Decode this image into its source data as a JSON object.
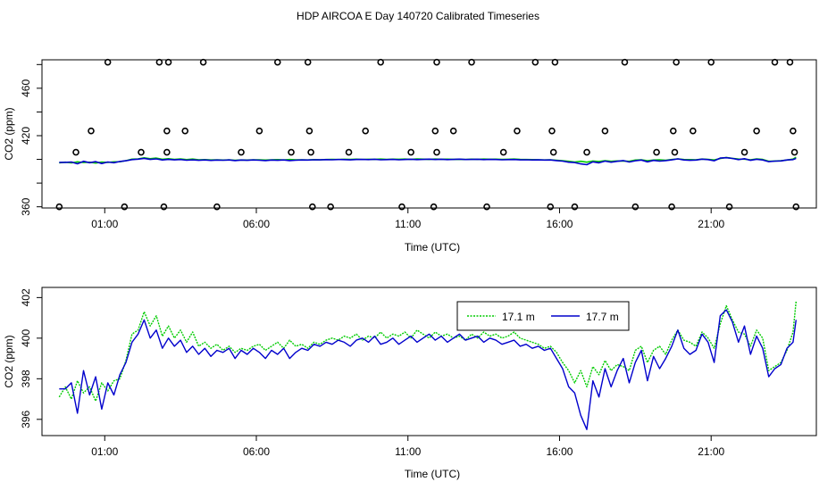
{
  "title": "HDP AIRCOA E  Day 140720  Calibrated Timeseries",
  "chart_data": [
    {
      "type": "line",
      "ylabel": "CO2 (ppm)",
      "xlabel": "Time (UTC)",
      "xticks": [
        "01:00",
        "06:00",
        "11:00",
        "16:00",
        "21:00"
      ],
      "xtick_hours": [
        1,
        6,
        11,
        16,
        21
      ],
      "xlim": [
        -1.07,
        24.47
      ],
      "yticks": [
        360,
        380,
        400,
        420,
        440,
        460,
        480
      ],
      "ytick_labels": [
        "360",
        "",
        "",
        "420",
        "",
        "460",
        ""
      ],
      "ylim": [
        359,
        484
      ],
      "markers": {
        "hours": [
          -0.5,
          0.05,
          0.55,
          1.1,
          1.65,
          2.2,
          2.95,
          2.8,
          3.05,
          3.05,
          3.1,
          3.65,
          4.25,
          4.7,
          5.5,
          6.1,
          6.7,
          7.15,
          7.7,
          7.75,
          7.8,
          7.85,
          8.45,
          9.05,
          9.6,
          10.1,
          10.8,
          11.1,
          11.85,
          11.9,
          11.95,
          11.95,
          12.5,
          13.1,
          13.6,
          14.15,
          14.6,
          15.2,
          15.7,
          15.75,
          15.8,
          15.85,
          16.5,
          16.9,
          17.5,
          18.15,
          18.5,
          19.2,
          19.7,
          19.75,
          19.8,
          19.85,
          20.4,
          21.0,
          21.6,
          22.1,
          22.5,
          23.1,
          23.6,
          23.7,
          23.75,
          23.8
        ],
        "values": [
          360,
          406,
          424,
          482,
          360,
          406,
          360,
          482,
          424,
          406,
          482,
          424,
          482,
          360,
          406,
          424,
          482,
          406,
          482,
          424,
          406,
          360,
          360,
          406,
          424,
          482,
          360,
          406,
          360,
          424,
          406,
          482,
          424,
          482,
          360,
          406,
          424,
          482,
          360,
          424,
          406,
          482,
          360,
          406,
          424,
          482,
          360,
          406,
          360,
          424,
          406,
          482,
          424,
          482,
          360,
          406,
          424,
          482,
          482,
          424,
          406,
          360
        ]
      },
      "series": [
        {
          "color": "#00CC00",
          "values": []
        },
        {
          "color": "#0000CC",
          "values": []
        }
      ]
    },
    {
      "type": "line",
      "ylabel": "CO2 (ppm)",
      "xlabel": "Time (UTC)",
      "xticks": [
        "01:00",
        "06:00",
        "11:00",
        "16:00",
        "21:00"
      ],
      "xtick_hours": [
        1,
        6,
        11,
        16,
        21
      ],
      "xlim": [
        -1.07,
        24.47
      ],
      "yticks": [
        396,
        398,
        400,
        402
      ],
      "ylim": [
        395.2,
        402.5
      ],
      "legend_position": "top-right",
      "series": [
        {
          "name": "17.1 m",
          "color": "#00CC00",
          "x": [
            -0.5,
            -0.3,
            -0.1,
            0.1,
            0.3,
            0.5,
            0.7,
            0.9,
            1.1,
            1.3,
            1.5,
            1.7,
            1.9,
            2.1,
            2.3,
            2.5,
            2.7,
            2.9,
            3.1,
            3.3,
            3.5,
            3.7,
            3.9,
            4.1,
            4.3,
            4.5,
            4.7,
            4.9,
            5.1,
            5.3,
            5.5,
            5.7,
            5.9,
            6.1,
            6.3,
            6.5,
            6.7,
            6.9,
            7.1,
            7.3,
            7.5,
            7.7,
            7.9,
            8.1,
            8.3,
            8.5,
            8.7,
            8.9,
            9.1,
            9.3,
            9.5,
            9.7,
            9.9,
            10.1,
            10.3,
            10.5,
            10.7,
            10.9,
            11.1,
            11.3,
            11.5,
            11.7,
            11.9,
            12.1,
            12.3,
            12.5,
            12.7,
            12.9,
            13.1,
            13.3,
            13.5,
            13.7,
            13.9,
            14.1,
            14.3,
            14.5,
            14.7,
            14.9,
            15.1,
            15.3,
            15.5,
            15.7,
            15.9,
            16.1,
            16.3,
            16.5,
            16.7,
            16.9,
            17.1,
            17.3,
            17.5,
            17.7,
            17.9,
            18.1,
            18.3,
            18.5,
            18.7,
            18.9,
            19.1,
            19.3,
            19.5,
            19.7,
            19.9,
            20.1,
            20.3,
            20.5,
            20.7,
            20.9,
            21.1,
            21.3,
            21.5,
            21.7,
            21.9,
            22.1,
            22.3,
            22.5,
            22.7,
            22.9,
            23.1,
            23.3,
            23.5,
            23.7,
            23.8
          ],
          "values": [
            397.1,
            397.6,
            397.0,
            397.9,
            397.3,
            397.6,
            396.9,
            397.8,
            397.4,
            397.9,
            398.0,
            398.9,
            400.2,
            400.4,
            401.3,
            400.6,
            401.1,
            400.1,
            400.6,
            400.0,
            400.4,
            399.8,
            400.3,
            399.6,
            399.8,
            399.5,
            399.7,
            399.4,
            399.6,
            399.3,
            399.5,
            399.4,
            399.6,
            399.7,
            399.4,
            399.6,
            399.8,
            399.5,
            399.9,
            399.6,
            399.7,
            399.5,
            399.8,
            399.7,
            399.9,
            400.0,
            399.9,
            400.1,
            400.0,
            400.2,
            399.9,
            400.1,
            400.0,
            400.3,
            400.0,
            400.2,
            400.1,
            400.3,
            400.0,
            400.4,
            400.2,
            400.0,
            400.3,
            400.1,
            400.2,
            400.0,
            400.1,
            399.9,
            400.2,
            400.0,
            400.3,
            400.1,
            400.2,
            400.0,
            400.1,
            400.3,
            400.0,
            399.9,
            399.8,
            399.7,
            399.5,
            399.6,
            399.3,
            398.8,
            398.4,
            397.8,
            398.4,
            397.6,
            398.6,
            398.2,
            398.9,
            398.4,
            398.7,
            398.6,
            398.4,
            399.4,
            399.6,
            398.8,
            399.4,
            399.6,
            399.2,
            399.9,
            400.4,
            399.9,
            399.8,
            399.6,
            400.3,
            400.0,
            399.5,
            400.7,
            401.6,
            400.9,
            400.3,
            400.2,
            399.6,
            400.4,
            400.0,
            398.4,
            398.6,
            398.8,
            399.4,
            400.3,
            401.8
          ]
        },
        {
          "name": "17.7 m",
          "color": "#0000CC",
          "x": [
            -0.5,
            -0.3,
            -0.1,
            0.1,
            0.3,
            0.5,
            0.7,
            0.9,
            1.1,
            1.3,
            1.5,
            1.7,
            1.9,
            2.1,
            2.3,
            2.5,
            2.7,
            2.9,
            3.1,
            3.3,
            3.5,
            3.7,
            3.9,
            4.1,
            4.3,
            4.5,
            4.7,
            4.9,
            5.1,
            5.3,
            5.5,
            5.7,
            5.9,
            6.1,
            6.3,
            6.5,
            6.7,
            6.9,
            7.1,
            7.3,
            7.5,
            7.7,
            7.9,
            8.1,
            8.3,
            8.5,
            8.7,
            8.9,
            9.1,
            9.3,
            9.5,
            9.7,
            9.9,
            10.1,
            10.3,
            10.5,
            10.7,
            10.9,
            11.1,
            11.3,
            11.5,
            11.7,
            11.9,
            12.1,
            12.3,
            12.5,
            12.7,
            12.9,
            13.1,
            13.3,
            13.5,
            13.7,
            13.9,
            14.1,
            14.3,
            14.5,
            14.7,
            14.9,
            15.1,
            15.3,
            15.5,
            15.7,
            15.9,
            16.1,
            16.3,
            16.5,
            16.7,
            16.9,
            17.1,
            17.3,
            17.5,
            17.7,
            17.9,
            18.1,
            18.3,
            18.5,
            18.7,
            18.9,
            19.1,
            19.3,
            19.5,
            19.7,
            19.9,
            20.1,
            20.3,
            20.5,
            20.7,
            20.9,
            21.1,
            21.3,
            21.5,
            21.7,
            21.9,
            22.1,
            22.3,
            22.5,
            22.7,
            22.9,
            23.1,
            23.3,
            23.5,
            23.7,
            23.8
          ],
          "values": [
            397.5,
            397.5,
            397.8,
            396.3,
            398.4,
            397.2,
            398.1,
            396.5,
            397.8,
            397.2,
            398.2,
            398.8,
            399.8,
            400.2,
            400.9,
            400.0,
            400.4,
            399.5,
            400.0,
            399.6,
            399.9,
            399.3,
            399.6,
            399.2,
            399.5,
            399.1,
            399.4,
            399.3,
            399.5,
            399.0,
            399.4,
            399.2,
            399.5,
            399.3,
            399.0,
            399.4,
            399.2,
            399.5,
            399.0,
            399.3,
            399.5,
            399.4,
            399.7,
            399.6,
            399.8,
            399.7,
            399.9,
            399.8,
            399.6,
            399.9,
            400.0,
            399.8,
            400.1,
            399.7,
            399.8,
            400.0,
            399.7,
            399.9,
            400.1,
            399.8,
            400.0,
            400.2,
            399.9,
            400.1,
            399.8,
            400.0,
            400.2,
            399.9,
            400.0,
            400.1,
            399.8,
            400.0,
            399.9,
            399.7,
            399.8,
            399.9,
            399.6,
            399.7,
            399.5,
            399.6,
            399.4,
            399.5,
            399.0,
            398.5,
            397.6,
            397.3,
            396.2,
            395.5,
            397.9,
            397.1,
            398.5,
            397.6,
            398.4,
            399.0,
            397.8,
            398.8,
            399.4,
            397.9,
            399.1,
            398.5,
            399.0,
            399.6,
            400.4,
            399.5,
            399.2,
            399.4,
            400.2,
            399.8,
            398.8,
            401.1,
            401.4,
            400.8,
            399.8,
            400.6,
            399.2,
            400.1,
            399.5,
            398.1,
            398.5,
            398.7,
            399.5,
            399.8,
            400.9
          ]
        }
      ]
    }
  ]
}
